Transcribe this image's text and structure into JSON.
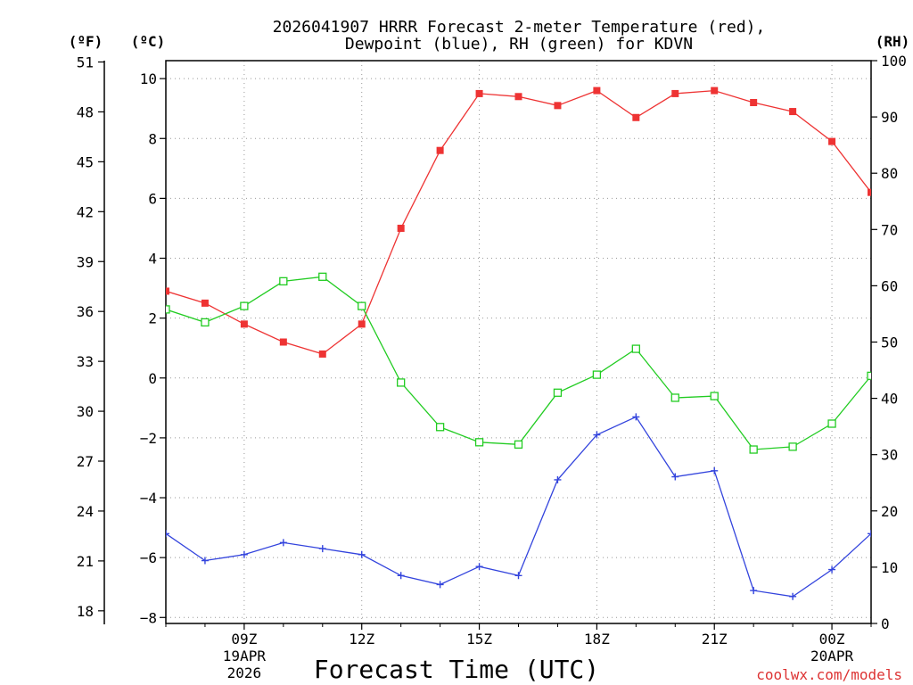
{
  "chart_data": {
    "type": "line",
    "title_line1": "2026041907 HRRR Forecast 2-meter Temperature (red),",
    "title_line2": "Dewpoint (blue), RH (green) for KDVN",
    "xlabel": "Forecast Time (UTC)",
    "left_outer_unit": "(ºF)",
    "left_inner_unit": "(ºC)",
    "right_unit": "(RH)",
    "watermark": "coolwx.com/models",
    "x_hours": [
      7,
      8,
      9,
      10,
      11,
      12,
      13,
      14,
      15,
      16,
      17,
      18,
      19,
      20,
      21,
      22,
      23,
      24,
      25
    ],
    "x_range": [
      7,
      25
    ],
    "celsius_range": [
      -8.2,
      10.6
    ],
    "rh_range": [
      0,
      100
    ],
    "x_ticks": [
      {
        "hour": 9,
        "line1": "09Z",
        "line2": "19APR",
        "line3": "2026"
      },
      {
        "hour": 12,
        "line1": "12Z",
        "line2": "",
        "line3": ""
      },
      {
        "hour": 15,
        "line1": "15Z",
        "line2": "",
        "line3": ""
      },
      {
        "hour": 18,
        "line1": "18Z",
        "line2": "",
        "line3": ""
      },
      {
        "hour": 21,
        "line1": "21Z",
        "line2": "",
        "line3": ""
      },
      {
        "hour": 24,
        "line1": "00Z",
        "line2": "20APR",
        "line3": ""
      }
    ],
    "celsius_ticks": [
      "10",
      "8",
      "6",
      "4",
      "2",
      "0",
      "−2",
      "−4",
      "−6",
      "−8"
    ],
    "fahrenheit_ticks": [
      "51",
      "48",
      "45",
      "42",
      "39",
      "36",
      "33",
      "30",
      "27",
      "24",
      "21",
      "18"
    ],
    "rh_ticks": [
      "100",
      "90",
      "80",
      "70",
      "60",
      "50",
      "40",
      "30",
      "20",
      "10",
      "0"
    ],
    "series": [
      {
        "name": "Temperature",
        "unit": "C",
        "color": "#ee3333",
        "marker": "filled-square",
        "values": [
          2.9,
          2.5,
          1.8,
          1.2,
          0.8,
          1.8,
          5.0,
          7.6,
          9.5,
          9.4,
          9.1,
          9.6,
          8.7,
          9.5,
          9.6,
          9.2,
          8.9,
          7.9,
          6.2
        ]
      },
      {
        "name": "Dewpoint",
        "unit": "C",
        "color": "#3344dd",
        "marker": "plus",
        "values": [
          -5.2,
          -6.1,
          -5.9,
          -5.5,
          -5.7,
          -5.9,
          -6.6,
          -6.9,
          -6.3,
          -6.6,
          -3.4,
          -1.9,
          -1.3,
          -3.3,
          -3.1,
          -7.1,
          -7.3,
          -6.4,
          -5.2
        ]
      },
      {
        "name": "RH",
        "unit": "%",
        "color": "#22cc22",
        "marker": "hollow-square",
        "values": [
          55.8,
          53.5,
          56.4,
          60.8,
          61.6,
          56.4,
          42.8,
          34.9,
          32.2,
          31.8,
          41.0,
          44.2,
          48.8,
          40.1,
          40.4,
          30.9,
          31.4,
          35.5,
          44.0
        ]
      }
    ]
  }
}
